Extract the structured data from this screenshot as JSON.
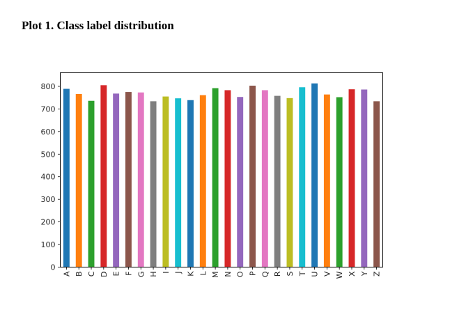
{
  "page_title": "Plot 1. Class label distribution",
  "chart_data": {
    "type": "bar",
    "title": "",
    "xlabel": "",
    "ylabel": "",
    "grid": false,
    "legend": false,
    "categories": [
      "A",
      "B",
      "C",
      "D",
      "E",
      "F",
      "G",
      "H",
      "I",
      "J",
      "K",
      "L",
      "M",
      "N",
      "O",
      "P",
      "Q",
      "R",
      "S",
      "T",
      "U",
      "V",
      "W",
      "X",
      "Y",
      "Z"
    ],
    "values": [
      789,
      766,
      736,
      805,
      768,
      775,
      773,
      734,
      755,
      747,
      739,
      761,
      792,
      783,
      753,
      803,
      783,
      758,
      748,
      796,
      813,
      764,
      752,
      787,
      786,
      734
    ],
    "colors": [
      "#1f77b4",
      "#ff7f0e",
      "#2ca02c",
      "#d62728",
      "#9467bd",
      "#8c564b",
      "#e377c2",
      "#7f7f7f",
      "#bcbd22",
      "#17becf"
    ],
    "yticks": [
      "0",
      "100",
      "200",
      "300",
      "400",
      "500",
      "600",
      "700",
      "800"
    ],
    "ylim": [
      0,
      860
    ]
  }
}
